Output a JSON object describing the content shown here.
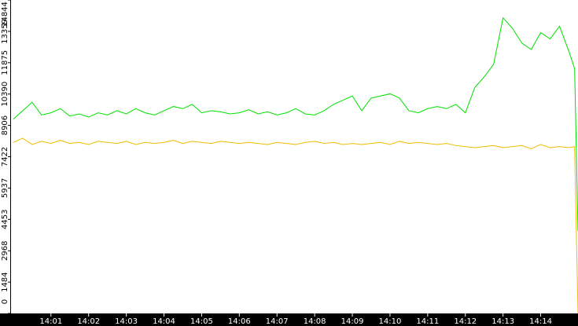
{
  "chart_data": {
    "type": "line",
    "x": [
      0,
      0.25,
      0.5,
      0.75,
      1,
      1.25,
      1.5,
      1.75,
      2,
      2.25,
      2.5,
      2.75,
      3,
      3.25,
      3.5,
      3.75,
      4,
      4.25,
      4.5,
      4.75,
      5,
      5.25,
      5.5,
      5.75,
      6,
      6.25,
      6.5,
      6.75,
      7,
      7.25,
      7.5,
      7.75,
      8,
      8.25,
      8.5,
      8.75,
      9,
      9.25,
      9.5,
      9.75,
      10,
      10.25,
      10.5,
      10.75,
      11,
      11.25,
      11.5,
      11.75,
      12,
      12.25,
      12.5,
      12.75,
      13,
      13.25,
      13.5,
      13.75,
      14,
      14.25,
      14.5,
      14.75,
      14.9,
      14.99
    ],
    "series": [
      {
        "color": "#00e000",
        "values": [
          9200,
          9600,
          10000,
          9400,
          9500,
          9700,
          9350,
          9450,
          9300,
          9500,
          9400,
          9600,
          9450,
          9700,
          9500,
          9400,
          9600,
          9800,
          9700,
          9900,
          9500,
          9600,
          9550,
          9450,
          9500,
          9650,
          9450,
          9550,
          9400,
          9500,
          9700,
          9450,
          9400,
          9600,
          9900,
          10100,
          10300,
          9600,
          10200,
          10300,
          10400,
          10200,
          9600,
          9500,
          9700,
          9800,
          9700,
          9900,
          9500,
          10700,
          11200,
          11800,
          14000,
          13500,
          12800,
          12500,
          13300,
          13000,
          13600,
          12400,
          11600,
          3900
        ]
      },
      {
        "color": "#f0bc00",
        "values": [
          8100,
          8300,
          8000,
          8150,
          8050,
          8200,
          8050,
          8100,
          8000,
          8150,
          8100,
          8050,
          8150,
          8000,
          8100,
          8050,
          8100,
          8200,
          8050,
          8150,
          8100,
          8050,
          8150,
          8100,
          8050,
          8100,
          8050,
          8000,
          8100,
          8050,
          8000,
          8100,
          8150,
          8050,
          8100,
          8000,
          8050,
          8000,
          8050,
          8100,
          8000,
          8150,
          8050,
          8100,
          8050,
          8000,
          8050,
          7950,
          7900,
          7850,
          7900,
          7950,
          7850,
          7900,
          7950,
          7800,
          8000,
          7850,
          7900,
          7850,
          7900,
          0
        ]
      }
    ],
    "xlim": [
      -0.06,
      14.99
    ],
    "xticks": [
      {
        "value": 1,
        "label": "14:01"
      },
      {
        "value": 2,
        "label": "14:02"
      },
      {
        "value": 3,
        "label": "14:03"
      },
      {
        "value": 4,
        "label": "14:04"
      },
      {
        "value": 5,
        "label": "14:05"
      },
      {
        "value": 6,
        "label": "14:06"
      },
      {
        "value": 7,
        "label": "14:07"
      },
      {
        "value": 8,
        "label": "14:08"
      },
      {
        "value": 9,
        "label": "14:09"
      },
      {
        "value": 10,
        "label": "14:10"
      },
      {
        "value": 11,
        "label": "14:11"
      },
      {
        "value": 12,
        "label": "14:12"
      },
      {
        "value": 13,
        "label": "14:13"
      },
      {
        "value": 14,
        "label": "14:14"
      }
    ],
    "ylim": [
      0,
      14844
    ],
    "yticks": [
      0,
      1484,
      2968,
      4453,
      5937,
      7422,
      8906,
      10390,
      11875,
      13359,
      14844
    ]
  }
}
